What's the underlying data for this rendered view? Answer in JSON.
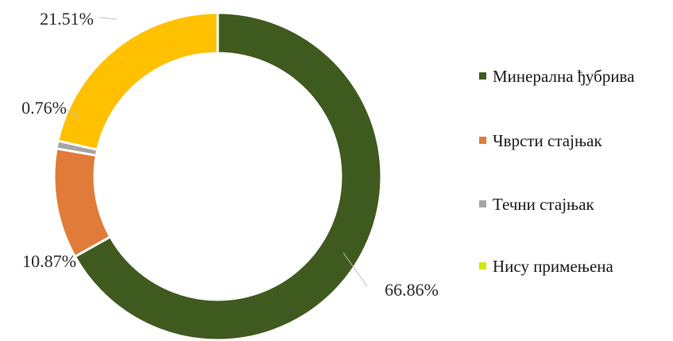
{
  "chart_data": {
    "type": "pie",
    "variant": "donut",
    "categories": [
      "Минерална ђубрива",
      "Чврсти стајњак",
      "Течни стајњак",
      "Нису примењена"
    ],
    "values": [
      66.86,
      10.87,
      0.76,
      21.51
    ],
    "data_labels": [
      "66.86%",
      "10.87%",
      "0.76%",
      "21.51%"
    ],
    "colors": [
      "#3f5a1f",
      "#e07b39",
      "#a5a5a5",
      "#ffc000"
    ],
    "legend_colors": [
      "#3f5a1f",
      "#e07b39",
      "#a5a5a5",
      "#d4e800"
    ],
    "legend_position": "right"
  }
}
